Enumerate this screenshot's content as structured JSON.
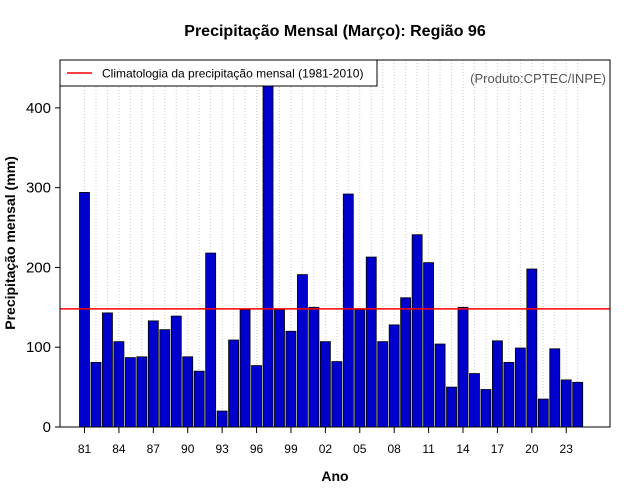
{
  "colors": {
    "bar_fill": "#0000cc",
    "bar_stroke": "#000000",
    "climatology_line": "#ff0000",
    "grid": "#cccccc",
    "credit_text": "#555555"
  },
  "chart_data": {
    "type": "bar",
    "title": "Precipitação Mensal (Março): Região 96",
    "xlabel": "Ano",
    "ylabel": "Precipitação mensal (mm)",
    "ylim": [
      0,
      460
    ],
    "yticks": [
      0,
      100,
      200,
      300,
      400
    ],
    "credit": "(Produto:CPTEC/INPE)",
    "legend": {
      "label": "Climatologia da precipitação mensal (1981-2010)",
      "placement": "top-left"
    },
    "climatology": 148,
    "categories": [
      "81",
      "82",
      "83",
      "84",
      "85",
      "86",
      "87",
      "88",
      "89",
      "90",
      "91",
      "92",
      "93",
      "94",
      "95",
      "96",
      "97",
      "98",
      "99",
      "00",
      "01",
      "02",
      "03",
      "04",
      "05",
      "06",
      "07",
      "08",
      "09",
      "10",
      "11",
      "12",
      "13",
      "14",
      "15",
      "16",
      "17",
      "18",
      "19",
      "20",
      "21",
      "22",
      "23",
      "24"
    ],
    "x_tick_labels": [
      "81",
      "84",
      "87",
      "90",
      "93",
      "96",
      "99",
      "02",
      "05",
      "08",
      "11",
      "14",
      "17",
      "20",
      "23"
    ],
    "values": [
      294,
      81,
      143,
      107,
      87,
      88,
      133,
      122,
      139,
      88,
      70,
      218,
      20,
      109,
      147,
      77,
      436,
      147,
      120,
      191,
      150,
      107,
      82,
      292,
      147,
      213,
      107,
      128,
      162,
      241,
      206,
      104,
      50,
      150,
      67,
      47,
      108,
      81,
      99,
      198,
      35,
      98,
      59,
      56
    ]
  }
}
